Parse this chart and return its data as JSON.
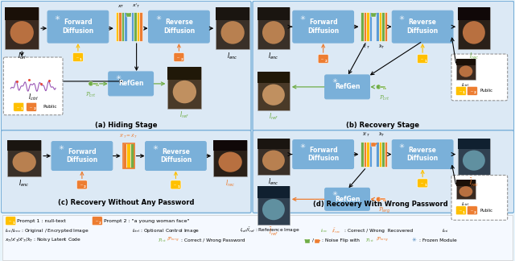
{
  "bg_color": "#e8f4fb",
  "panel_bg": "#dce9f5",
  "panel_border": "#7ab0d9",
  "blue_box": "#7ab0d9",
  "blue_box_dark": "#4a86bc",
  "green_box": "#70ad47",
  "orange": "#ed7d31",
  "yellow": "#ffc000",
  "green_text": "#70ad47",
  "orange_text": "#ed7d31",
  "panels": [
    "(a) Hiding Stage",
    "(b) Recovery Stage",
    "(c) Recovery Without Any Password",
    "(d) Recovery With Wrong Password"
  ]
}
